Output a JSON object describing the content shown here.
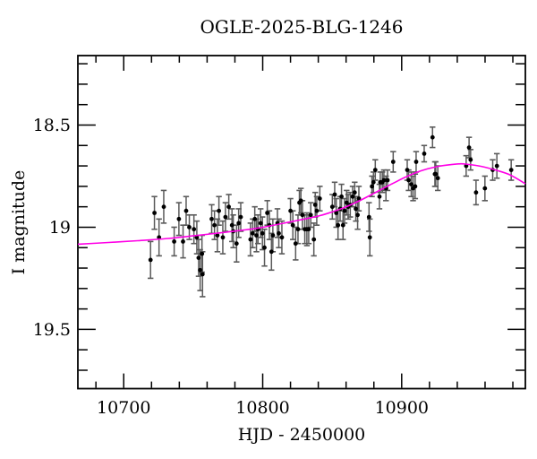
{
  "title": "OGLE-2025-BLG-1246",
  "axes": {
    "x_label": "HJD - 2450000",
    "y_label": "I magnitude",
    "x_ticks_major": [
      10700,
      10800,
      10900
    ],
    "x_tick_labels": [
      "10700",
      "10800",
      "10900"
    ],
    "x_minor_step": 20,
    "y_ticks_major": [
      18.5,
      19.0,
      19.5
    ],
    "y_tick_labels": [
      "18.5",
      "19",
      "19.5"
    ],
    "y_minor_step": 0.1
  },
  "colors": {
    "background": "#ffffff",
    "frame": "#000000",
    "data_point": "#000000",
    "error_bar": "#5a5a5a",
    "model_curve": "#ff00e6"
  },
  "chart_data": {
    "type": "scatter",
    "title": "OGLE-2025-BLG-1246",
    "xlabel": "HJD - 2450000",
    "ylabel": "I magnitude",
    "xlim": [
      10667,
      10989
    ],
    "ylim": [
      19.79,
      18.16
    ],
    "y_axis_inverted": true,
    "grid": false,
    "legend": "none",
    "series": [
      {
        "name": "I-band photometry",
        "type": "scatter-errorbar",
        "points": [
          [
            10719.3,
            19.16,
            0.09
          ],
          [
            10722.1,
            18.93,
            0.08
          ],
          [
            10725.4,
            19.05,
            0.09
          ],
          [
            10728.8,
            18.9,
            0.08
          ],
          [
            10736.3,
            19.07,
            0.07
          ],
          [
            10739.7,
            18.96,
            0.08
          ],
          [
            10742.7,
            19.07,
            0.08
          ],
          [
            10744.9,
            18.92,
            0.07
          ],
          [
            10747.2,
            19.0,
            0.06
          ],
          [
            10750.5,
            19.01,
            0.07
          ],
          [
            10752.6,
            19.05,
            0.08
          ],
          [
            10753.9,
            19.15,
            0.09
          ],
          [
            10755.0,
            19.21,
            0.1
          ],
          [
            10756.3,
            19.13,
            0.09
          ],
          [
            10756.7,
            19.23,
            0.11
          ],
          [
            10763.3,
            18.96,
            0.07
          ],
          [
            10765.3,
            18.99,
            0.07
          ],
          [
            10767.4,
            19.04,
            0.08
          ],
          [
            10768.5,
            18.92,
            0.07
          ],
          [
            10771.3,
            19.05,
            0.08
          ],
          [
            10773.2,
            18.95,
            0.07
          ],
          [
            10775.6,
            18.9,
            0.06
          ],
          [
            10777.9,
            18.99,
            0.08
          ],
          [
            10778.8,
            19.02,
            0.08
          ],
          [
            10781.2,
            19.08,
            0.09
          ],
          [
            10782.7,
            18.98,
            0.07
          ],
          [
            10784.2,
            18.95,
            0.07
          ],
          [
            10791.2,
            19.06,
            0.08
          ],
          [
            10792.8,
            19.03,
            0.07
          ],
          [
            10794.3,
            18.96,
            0.06
          ],
          [
            10795.5,
            19.04,
            0.08
          ],
          [
            10796.6,
            19.01,
            0.07
          ],
          [
            10798.5,
            18.98,
            0.07
          ],
          [
            10799.8,
            19.03,
            0.08
          ],
          [
            10801.3,
            19.1,
            0.09
          ],
          [
            10803.3,
            18.93,
            0.06
          ],
          [
            10804.8,
            18.99,
            0.07
          ],
          [
            10806.3,
            19.12,
            0.09
          ],
          [
            10807.3,
            19.04,
            0.08
          ],
          [
            10810.6,
            18.98,
            0.07
          ],
          [
            10811.6,
            19.03,
            0.07
          ],
          [
            10813.8,
            19.05,
            0.08
          ],
          [
            10820.0,
            18.92,
            0.06
          ],
          [
            10821.7,
            18.99,
            0.07
          ],
          [
            10823.7,
            19.08,
            0.08
          ],
          [
            10825.4,
            19.01,
            0.07
          ],
          [
            10826.4,
            18.88,
            0.06
          ],
          [
            10827.5,
            18.87,
            0.06
          ],
          [
            10828.6,
            18.94,
            0.07
          ],
          [
            10830.3,
            19.01,
            0.07
          ],
          [
            10831.8,
            19.01,
            0.08
          ],
          [
            10833.1,
            19.01,
            0.07
          ],
          [
            10834.6,
            18.94,
            0.06
          ],
          [
            10836.8,
            19.06,
            0.08
          ],
          [
            10837.8,
            18.89,
            0.06
          ],
          [
            10838.9,
            18.92,
            0.07
          ],
          [
            10841.1,
            18.86,
            0.06
          ],
          [
            10850.1,
            18.9,
            0.06
          ],
          [
            10851.8,
            18.84,
            0.06
          ],
          [
            10852.9,
            18.93,
            0.07
          ],
          [
            10854.2,
            18.99,
            0.07
          ],
          [
            10855.7,
            18.91,
            0.06
          ],
          [
            10856.7,
            18.85,
            0.06
          ],
          [
            10857.8,
            18.99,
            0.07
          ],
          [
            10858.9,
            18.92,
            0.06
          ],
          [
            10860.4,
            18.88,
            0.06
          ],
          [
            10861.5,
            18.9,
            0.06
          ],
          [
            10863.0,
            18.89,
            0.06
          ],
          [
            10864.7,
            18.85,
            0.05
          ],
          [
            10866.2,
            18.83,
            0.05
          ],
          [
            10867.0,
            18.91,
            0.06
          ],
          [
            10868.3,
            18.94,
            0.07
          ],
          [
            10869.2,
            18.86,
            0.06
          ],
          [
            10876.5,
            18.95,
            0.07
          ],
          [
            10877.1,
            19.05,
            0.09
          ],
          [
            10878.6,
            18.8,
            0.05
          ],
          [
            10879.7,
            18.78,
            0.05
          ],
          [
            10881.0,
            18.72,
            0.05
          ],
          [
            10884.0,
            18.85,
            0.06
          ],
          [
            10884.6,
            18.78,
            0.05
          ],
          [
            10886.1,
            18.78,
            0.05
          ],
          [
            10887.2,
            18.77,
            0.05
          ],
          [
            10888.7,
            18.81,
            0.06
          ],
          [
            10889.8,
            18.77,
            0.05
          ],
          [
            10893.9,
            18.68,
            0.05
          ],
          [
            10904.0,
            18.72,
            0.05
          ],
          [
            10905.0,
            18.77,
            0.05
          ],
          [
            10906.9,
            18.79,
            0.06
          ],
          [
            10908.2,
            18.81,
            0.06
          ],
          [
            10909.7,
            18.8,
            0.06
          ],
          [
            10910.4,
            18.68,
            0.05
          ],
          [
            10916.2,
            18.64,
            0.04
          ],
          [
            10922.2,
            18.56,
            0.05
          ],
          [
            10923.9,
            18.74,
            0.06
          ],
          [
            10924.5,
            18.74,
            0.06
          ],
          [
            10926.0,
            18.76,
            0.06
          ],
          [
            10946.4,
            18.7,
            0.05
          ],
          [
            10948.5,
            18.61,
            0.05
          ],
          [
            10949.6,
            18.67,
            0.05
          ],
          [
            10953.5,
            18.83,
            0.06
          ],
          [
            10959.9,
            18.81,
            0.06
          ],
          [
            10965.5,
            18.72,
            0.05
          ],
          [
            10968.5,
            18.7,
            0.06
          ],
          [
            10978.8,
            18.72,
            0.05
          ]
        ]
      },
      {
        "name": "microlensing model",
        "type": "line",
        "points": [
          [
            10667,
            19.083
          ],
          [
            10689,
            19.075
          ],
          [
            10710,
            19.066
          ],
          [
            10732,
            19.055
          ],
          [
            10753,
            19.04
          ],
          [
            10774,
            19.024
          ],
          [
            10796,
            19.005
          ],
          [
            10817,
            18.978
          ],
          [
            10839,
            18.947
          ],
          [
            10850,
            18.925
          ],
          [
            10860,
            18.9
          ],
          [
            10871,
            18.866
          ],
          [
            10882,
            18.827
          ],
          [
            10893,
            18.788
          ],
          [
            10903,
            18.754
          ],
          [
            10914,
            18.724
          ],
          [
            10925,
            18.704
          ],
          [
            10935,
            18.694
          ],
          [
            10941,
            18.69
          ],
          [
            10946,
            18.691
          ],
          [
            10957,
            18.702
          ],
          [
            10968,
            18.721
          ],
          [
            10978,
            18.744
          ],
          [
            10989,
            18.787
          ]
        ]
      }
    ]
  }
}
